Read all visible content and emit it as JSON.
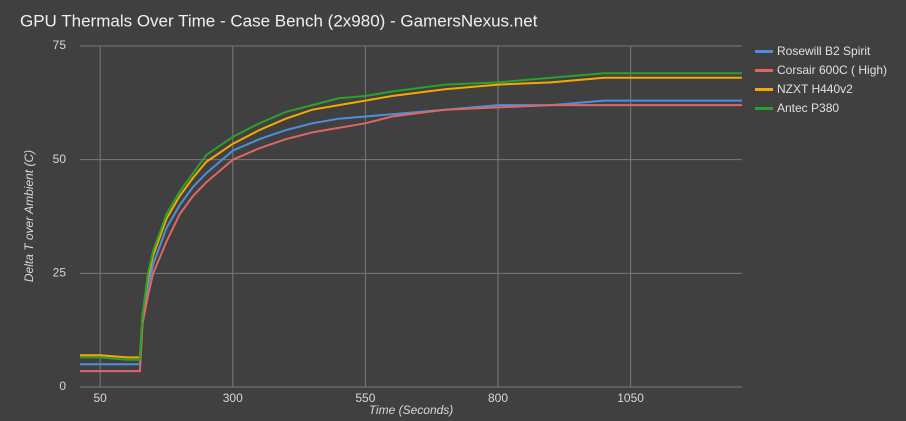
{
  "chart_data": {
    "type": "line",
    "title": "GPU Thermals Over Time - Case Bench (2x980) - GamersNexus.net",
    "x_label": "Time (Seconds)",
    "y_label": "Delta T over Ambient (C)",
    "x": [
      12,
      50,
      100,
      125,
      130,
      140,
      150,
      175,
      200,
      225,
      250,
      300,
      350,
      400,
      450,
      500,
      550,
      600,
      700,
      800,
      900,
      1000,
      1100,
      1200,
      1260
    ],
    "series": [
      {
        "name": "Rosewill B2 Spirit",
        "color": "#4f8fd9",
        "values": [
          5,
          5,
          5,
          5,
          15,
          22,
          27,
          35,
          40,
          44,
          47,
          52,
          54.5,
          56.5,
          58,
          59,
          59.5,
          60,
          61,
          62,
          62,
          63,
          63,
          63,
          63
        ]
      },
      {
        "name": "Corsair 600C ( High)",
        "color": "#e06666",
        "values": [
          3.5,
          3.5,
          3.5,
          3.5,
          14,
          20,
          25,
          32,
          38,
          42,
          45,
          50,
          52.5,
          54.5,
          56,
          57,
          58,
          59.5,
          61,
          61.5,
          62,
          62,
          62,
          62,
          62
        ]
      },
      {
        "name": "NZXT H440v2",
        "color": "#f6a800",
        "values": [
          7,
          7,
          6.5,
          6.5,
          16,
          24,
          29,
          37,
          42,
          46,
          49.5,
          53.5,
          56.5,
          59,
          61,
          62,
          63,
          64,
          65.5,
          66.5,
          67,
          68,
          68,
          68,
          68
        ]
      },
      {
        "name": "Antec P380",
        "color": "#2ca02c",
        "values": [
          6.5,
          6.5,
          6,
          6,
          16,
          25,
          30,
          38,
          43,
          47,
          51,
          55,
          58,
          60.5,
          62,
          63.5,
          64,
          65,
          66.5,
          67,
          68,
          69,
          69,
          69,
          69
        ]
      }
    ],
    "xlim": [
      12,
      1260
    ],
    "ylim": [
      0,
      75
    ],
    "xticks": [
      50,
      300,
      550,
      800,
      1050
    ],
    "yticks": [
      0,
      25,
      50,
      75
    ],
    "grid": true
  }
}
